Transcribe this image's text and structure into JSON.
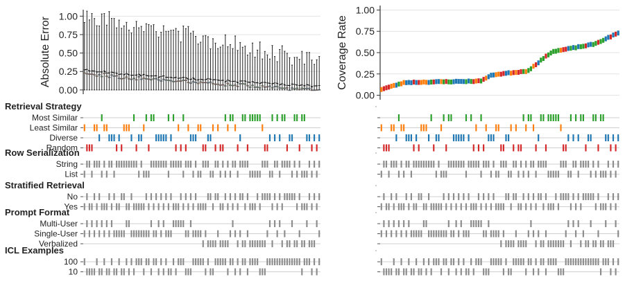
{
  "chart_data": [
    {
      "type": "box",
      "ylabel": "Absolute Error",
      "ylim": [
        1.05,
        -0.02
      ],
      "yticks": [
        "0.00",
        "0.25",
        "0.50",
        "0.75",
        "1.00"
      ],
      "ytick_values": [
        0,
        0.25,
        0.5,
        0.75,
        1.0
      ],
      "n_configs": 96,
      "median_start": 0.28,
      "median_end": 0.05,
      "whisker_low_start": 1.02,
      "whisker_low_end": 0.38,
      "trend_line": "dashed"
    },
    {
      "type": "scatter",
      "ylabel": "Coverage Rate",
      "ylim": [
        -0.02,
        1.02
      ],
      "yticks": [
        "0.00",
        "0.25",
        "0.50",
        "0.75",
        "1.00"
      ],
      "ytick_values": [
        0,
        0.25,
        0.5,
        0.75,
        1.0
      ],
      "n_configs": 96,
      "y_start": 0.07,
      "y_end": 0.73
    }
  ],
  "factors": {
    "groups": [
      {
        "title": "Retrieval Strategy",
        "levels": [
          "Most Similar",
          "Least Similar",
          "Diverse",
          "Random"
        ]
      },
      {
        "title": "Row Serialization",
        "levels": [
          "String",
          "List"
        ]
      },
      {
        "title": "Stratified Retrieval",
        "levels": [
          "No",
          "Yes"
        ]
      },
      {
        "title": "Prompt Format",
        "levels": [
          "Multi-User",
          "Single-User",
          "Verbalized"
        ]
      },
      {
        "title": "ICL Examples",
        "levels": [
          "100",
          "10"
        ]
      }
    ]
  },
  "colors": {
    "strategy": [
      "#2ca02c",
      "#ff7f0e",
      "#1f77b4",
      "#d62728"
    ],
    "gray": "#8c8c8c",
    "grid": "#e3e3e3",
    "axis": "#333333"
  }
}
